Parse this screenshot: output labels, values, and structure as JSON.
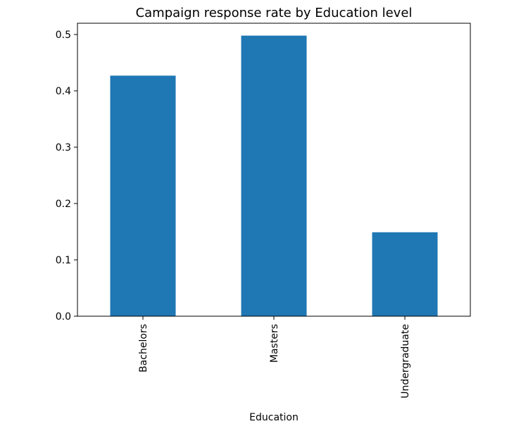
{
  "chart_data": {
    "type": "bar",
    "title": "Campaign response rate by Education level",
    "xlabel": "Education",
    "ylabel": "",
    "categories": [
      "Bachelors",
      "Masters",
      "Undergraduate"
    ],
    "values": [
      0.427,
      0.498,
      0.149
    ],
    "ylim": [
      0,
      0.52
    ],
    "yticks": [
      "0.0",
      "0.1",
      "0.2",
      "0.3",
      "0.4",
      "0.5"
    ],
    "bar_color": "#1f77b4",
    "grid": false
  }
}
